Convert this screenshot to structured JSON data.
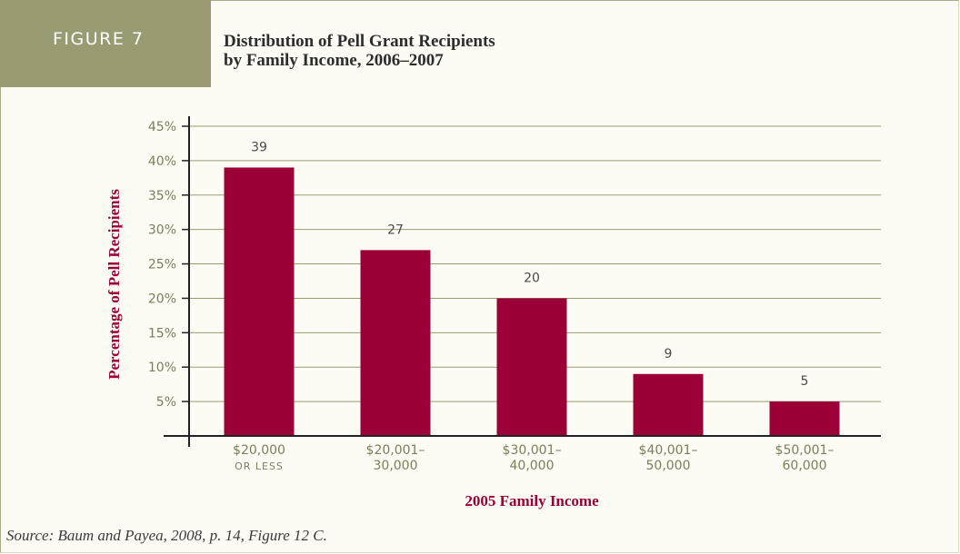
{
  "header": {
    "figure_label": "FIGURE 7",
    "title_line1": "Distribution of Pell Grant Recipients",
    "title_line2": "by Family Income, 2006–2007"
  },
  "source": "Source: Baum and Payea, 2008, p. 14, Figure 12 C.",
  "colors": {
    "bar": "#9b0037",
    "axis_title": "#9b0037",
    "tick_label": "#7d7d5d",
    "grid": "#9b9b73",
    "tab": "#9b9b73"
  },
  "chart_data": {
    "type": "bar",
    "categories": [
      [
        "$20,000",
        "or Less"
      ],
      [
        "$20,001–",
        "30,000"
      ],
      [
        "$30,001–",
        "40,000"
      ],
      [
        "$40,001–",
        "50,000"
      ],
      [
        "$50,001–",
        "60,000"
      ]
    ],
    "values": [
      39,
      27,
      20,
      9,
      5
    ],
    "data_labels": [
      "39",
      "27",
      "20",
      "9",
      "5"
    ],
    "xlabel": "2005 Family Income",
    "ylabel": "Percentage of Pell Recipients",
    "ylim": [
      0,
      45
    ],
    "yticks": [
      5,
      10,
      15,
      20,
      25,
      30,
      35,
      40,
      45
    ],
    "ytick_labels": [
      "5%",
      "10%",
      "15%",
      "20%",
      "25%",
      "30%",
      "35%",
      "40%",
      "45%"
    ],
    "grid": true
  }
}
